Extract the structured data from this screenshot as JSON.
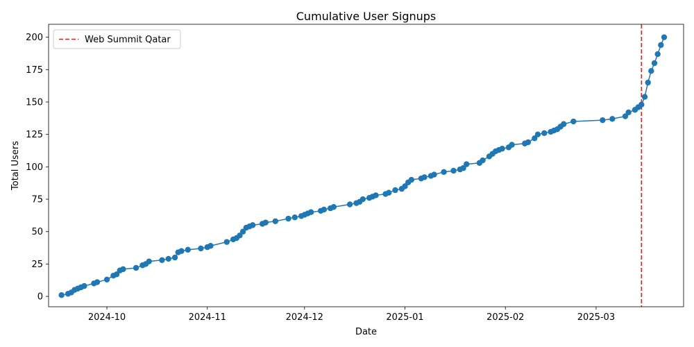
{
  "chart_data": {
    "type": "line",
    "title": "Cumulative User Signups",
    "xlabel": "Date",
    "ylabel": "Total Users",
    "xlim": [
      "2024-09-13",
      "2025-03-28"
    ],
    "ylim": [
      -8,
      210
    ],
    "x_ticks": [
      {
        "date": "2024-10-01",
        "label": "2024-10"
      },
      {
        "date": "2024-11-01",
        "label": "2024-11"
      },
      {
        "date": "2024-12-01",
        "label": "2024-12"
      },
      {
        "date": "2025-01-01",
        "label": "2025-01"
      },
      {
        "date": "2025-02-01",
        "label": "2025-02"
      },
      {
        "date": "2025-03-01",
        "label": "2025-03"
      }
    ],
    "y_ticks": [
      0,
      25,
      50,
      75,
      100,
      125,
      150,
      175,
      200
    ],
    "series": [
      {
        "color": "#1f77b4",
        "marker": "circle",
        "points": [
          [
            "2024-09-17",
            1
          ],
          [
            "2024-09-19",
            2
          ],
          [
            "2024-09-20",
            3
          ],
          [
            "2024-09-21",
            5
          ],
          [
            "2024-09-22",
            6
          ],
          [
            "2024-09-23",
            7
          ],
          [
            "2024-09-24",
            8
          ],
          [
            "2024-09-27",
            10
          ],
          [
            "2024-09-28",
            11
          ],
          [
            "2024-10-01",
            13
          ],
          [
            "2024-10-03",
            16
          ],
          [
            "2024-10-04",
            17
          ],
          [
            "2024-10-05",
            20
          ],
          [
            "2024-10-06",
            21
          ],
          [
            "2024-10-10",
            22
          ],
          [
            "2024-10-12",
            24
          ],
          [
            "2024-10-13",
            25
          ],
          [
            "2024-10-14",
            27
          ],
          [
            "2024-10-18",
            28
          ],
          [
            "2024-10-20",
            29
          ],
          [
            "2024-10-22",
            30
          ],
          [
            "2024-10-23",
            34
          ],
          [
            "2024-10-24",
            35
          ],
          [
            "2024-10-26",
            36
          ],
          [
            "2024-10-30",
            37
          ],
          [
            "2024-11-01",
            38
          ],
          [
            "2024-11-02",
            39
          ],
          [
            "2024-11-07",
            42
          ],
          [
            "2024-11-09",
            44
          ],
          [
            "2024-11-10",
            45
          ],
          [
            "2024-11-11",
            47
          ],
          [
            "2024-11-12",
            50
          ],
          [
            "2024-11-13",
            53
          ],
          [
            "2024-11-14",
            54
          ],
          [
            "2024-11-15",
            55
          ],
          [
            "2024-11-18",
            56
          ],
          [
            "2024-11-19",
            57
          ],
          [
            "2024-11-22",
            58
          ],
          [
            "2024-11-26",
            60
          ],
          [
            "2024-11-28",
            61
          ],
          [
            "2024-11-30",
            62
          ],
          [
            "2024-12-01",
            63
          ],
          [
            "2024-12-02",
            64
          ],
          [
            "2024-12-03",
            65
          ],
          [
            "2024-12-06",
            66
          ],
          [
            "2024-12-07",
            67
          ],
          [
            "2024-12-09",
            68
          ],
          [
            "2024-12-10",
            69
          ],
          [
            "2024-12-15",
            71
          ],
          [
            "2024-12-17",
            72
          ],
          [
            "2024-12-18",
            73
          ],
          [
            "2024-12-19",
            75
          ],
          [
            "2024-12-21",
            76
          ],
          [
            "2024-12-22",
            77
          ],
          [
            "2024-12-23",
            78
          ],
          [
            "2024-12-26",
            79
          ],
          [
            "2024-12-27",
            80
          ],
          [
            "2024-12-29",
            82
          ],
          [
            "2024-12-31",
            83
          ],
          [
            "2025-01-01",
            85
          ],
          [
            "2025-01-02",
            88
          ],
          [
            "2025-01-03",
            90
          ],
          [
            "2025-01-06",
            91
          ],
          [
            "2025-01-07",
            92
          ],
          [
            "2025-01-09",
            93
          ],
          [
            "2025-01-10",
            94
          ],
          [
            "2025-01-13",
            96
          ],
          [
            "2025-01-16",
            97
          ],
          [
            "2025-01-18",
            98
          ],
          [
            "2025-01-19",
            99
          ],
          [
            "2025-01-20",
            102
          ],
          [
            "2025-01-24",
            103
          ],
          [
            "2025-01-25",
            105
          ],
          [
            "2025-01-27",
            108
          ],
          [
            "2025-01-28",
            110
          ],
          [
            "2025-01-29",
            112
          ],
          [
            "2025-01-30",
            113
          ],
          [
            "2025-01-31",
            114
          ],
          [
            "2025-02-02",
            115
          ],
          [
            "2025-02-03",
            117
          ],
          [
            "2025-02-07",
            118
          ],
          [
            "2025-02-08",
            119
          ],
          [
            "2025-02-10",
            122
          ],
          [
            "2025-02-11",
            125
          ],
          [
            "2025-02-13",
            126
          ],
          [
            "2025-02-15",
            127
          ],
          [
            "2025-02-16",
            128
          ],
          [
            "2025-02-17",
            129
          ],
          [
            "2025-02-18",
            131
          ],
          [
            "2025-02-19",
            133
          ],
          [
            "2025-02-22",
            135
          ],
          [
            "2025-03-03",
            136
          ],
          [
            "2025-03-06",
            137
          ],
          [
            "2025-03-10",
            139
          ],
          [
            "2025-03-11",
            142
          ],
          [
            "2025-03-13",
            144
          ],
          [
            "2025-03-14",
            146
          ],
          [
            "2025-03-15",
            148
          ],
          [
            "2025-03-16",
            154
          ],
          [
            "2025-03-17",
            165
          ],
          [
            "2025-03-18",
            174
          ],
          [
            "2025-03-19",
            180
          ],
          [
            "2025-03-20",
            187
          ],
          [
            "2025-03-21",
            194
          ],
          [
            "2025-03-22",
            200
          ]
        ]
      }
    ],
    "event_line": {
      "date": "2025-03-15",
      "label": "Web Summit Qatar",
      "color": "#d62728",
      "style": "dashed"
    },
    "legend": {
      "position": "top-left",
      "entries": [
        "Web Summit Qatar"
      ]
    },
    "grid": false
  }
}
